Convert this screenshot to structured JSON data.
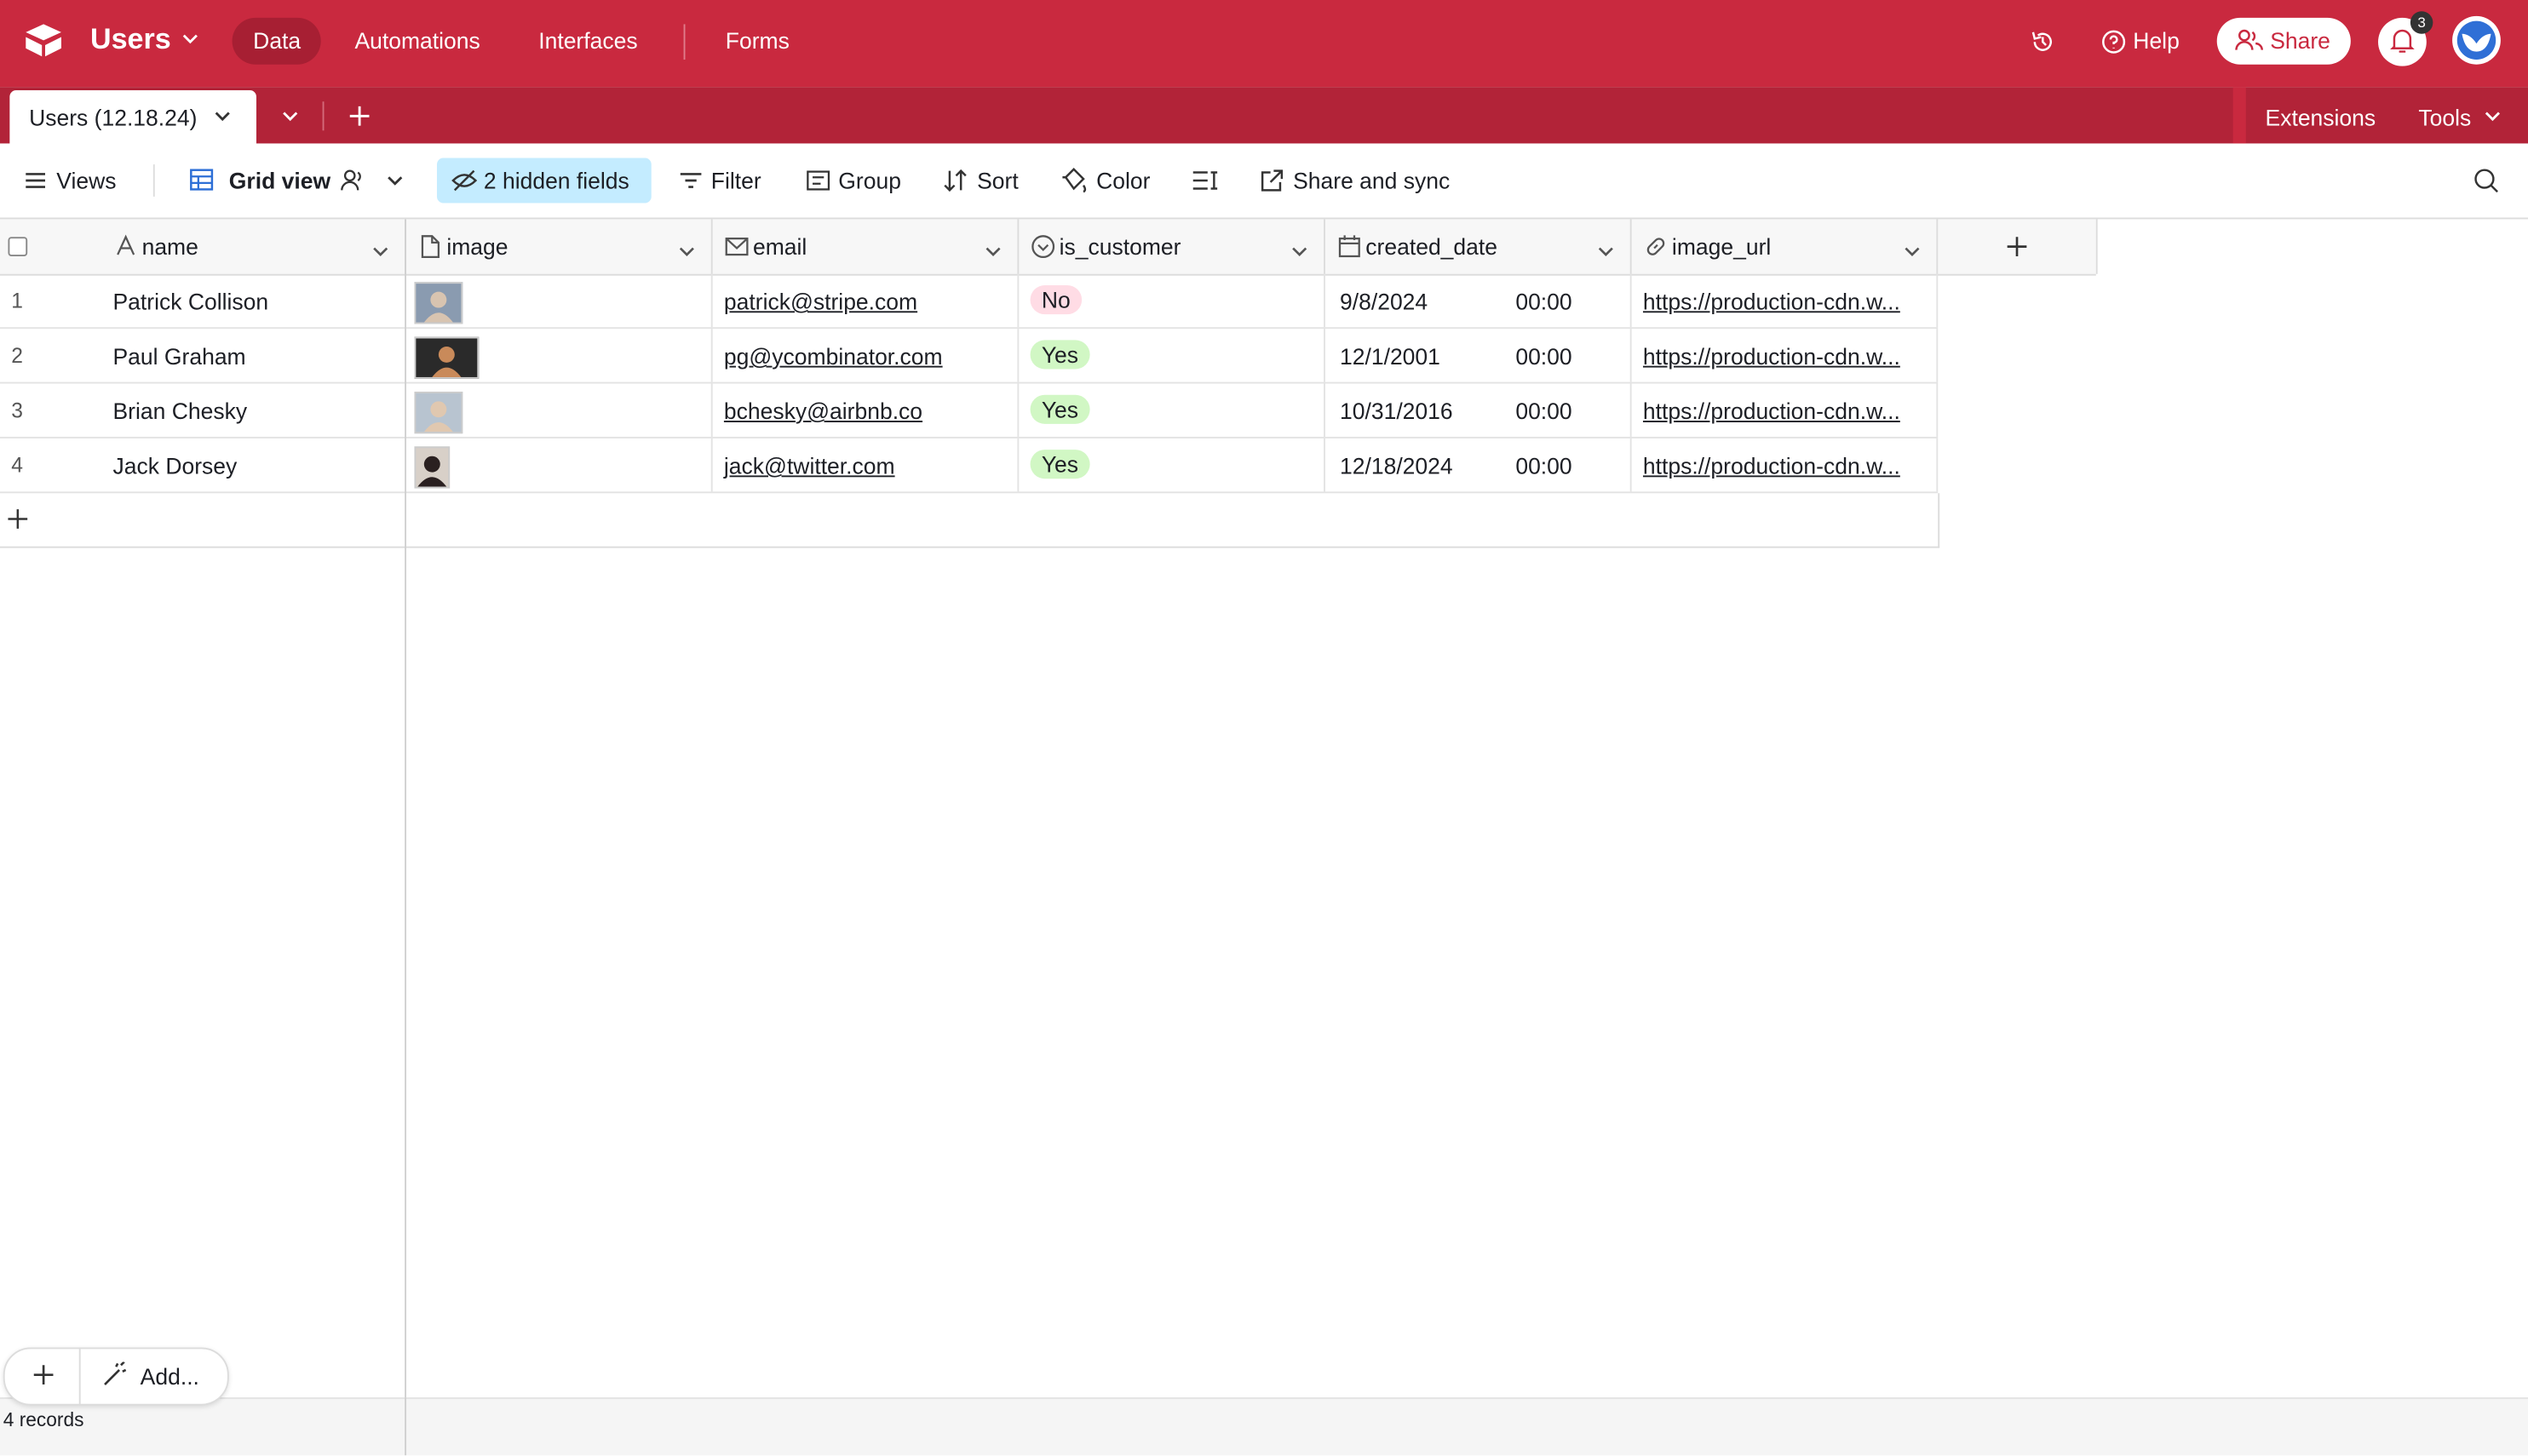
{
  "topbar": {
    "base_name": "Users",
    "nav": [
      "Data",
      "Automations",
      "Interfaces",
      "Forms"
    ],
    "help": "Help",
    "share": "Share",
    "notifications": 3
  },
  "tabbar": {
    "active_tab": "Users (12.18.24)",
    "extensions": "Extensions",
    "tools": "Tools"
  },
  "toolbar": {
    "views": "Views",
    "view_name": "Grid view",
    "hidden_fields": "2 hidden fields",
    "buttons": [
      "Filter",
      "Group",
      "Sort",
      "Color",
      "Share and sync"
    ]
  },
  "table": {
    "columns": [
      "name",
      "image",
      "email",
      "is_customer",
      "created_date",
      "image_url"
    ],
    "rows": [
      {
        "number": 1,
        "name": "Patrick Collison",
        "email": "patrick@stripe.com",
        "is_customer": "No",
        "date": "9/8/2024",
        "time": "00:00",
        "image_url": "https://production-cdn.w..."
      },
      {
        "number": 2,
        "name": "Paul Graham",
        "email": "pg@ycombinator.com",
        "is_customer": "Yes",
        "date": "12/1/2001",
        "time": "00:00",
        "image_url": "https://production-cdn.w..."
      },
      {
        "number": 3,
        "name": "Brian Chesky",
        "email": "bchesky@airbnb.co",
        "is_customer": "Yes",
        "date": "10/31/2016",
        "time": "00:00",
        "image_url": "https://production-cdn.w..."
      },
      {
        "number": 4,
        "name": "Jack Dorsey",
        "email": "jack@twitter.com",
        "is_customer": "Yes",
        "date": "12/18/2024",
        "time": "00:00",
        "image_url": "https://production-cdn.w..."
      }
    ]
  },
  "footer": {
    "add_button": "Add...",
    "record_count": "4 records"
  }
}
